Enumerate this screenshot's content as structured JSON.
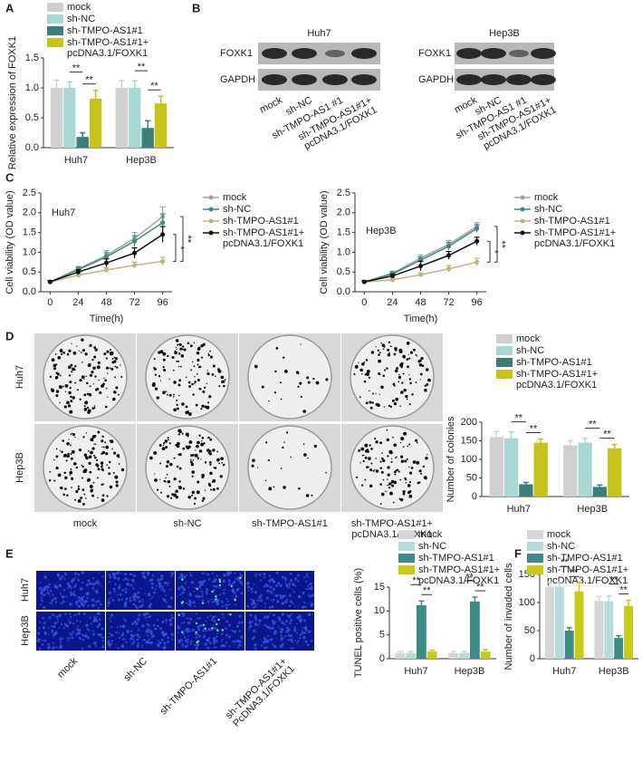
{
  "panel_labels": [
    "A",
    "B",
    "C",
    "D",
    "E",
    "F"
  ],
  "blots": [
    {
      "title": "Huh7",
      "rows": [
        "FOXK1",
        "GAPDH"
      ]
    },
    {
      "title": "Hep3B",
      "rows": [
        "FOXK1",
        "GAPDH"
      ]
    }
  ],
  "blot_lanes": [
    "mock",
    "sh-NC",
    "sh-TMPO-AS1 #1",
    "sh-TMPO-AS1#1+ pcDNA3.1/FOXK1"
  ],
  "colony_assay": {
    "rows": [
      "Huh7",
      "Hep3B"
    ],
    "columns": [
      "mock",
      "sh-NC",
      "sh-TMPO-AS1#1",
      "sh-TMPO-AS1#1+ pcDNA3.1/FOXK1"
    ]
  },
  "tunel_assay": {
    "rows": [
      "Huh7",
      "Hep3B"
    ],
    "columns": [
      "mock",
      "sh-NC",
      "sh-TMPO-AS1#1",
      "sh-TMPO-AS1#1+ PcDNA3.1/FOXK1"
    ]
  },
  "chart_data": [
    {
      "type": "bar",
      "ylabel": "Relative expression of FOXK1",
      "categories": [
        "Huh7",
        "Hep3B"
      ],
      "ylim": [
        0,
        1.5
      ],
      "yticks": [
        {
          "value": 0,
          "label": "0.0"
        },
        0.5,
        {
          "value": 1,
          "label": "1.0"
        },
        1.5
      ],
      "series": [
        {
          "name": "mock",
          "color": "#d0d0d0",
          "values": [
            1.0,
            1.0
          ],
          "errors": [
            0.13,
            0.12
          ]
        },
        {
          "name": "sh-NC",
          "color": "#a9d7d3",
          "values": [
            1.0,
            1.0
          ],
          "errors": [
            0.1,
            0.12
          ]
        },
        {
          "name": "sh-TMPO-AS1#1",
          "color": "#3d7d7a",
          "values": [
            0.18,
            0.33
          ],
          "errors": [
            0.07,
            0.12
          ]
        },
        {
          "name": "sh-TMPO-AS1#1+ pcDNA3.1/FOXK1",
          "color": "#c6c41a",
          "values": [
            0.82,
            0.74
          ],
          "errors": [
            0.14,
            0.12
          ]
        }
      ],
      "significance": [
        "**",
        "**",
        "**",
        "**"
      ]
    },
    {
      "type": "line",
      "title": "Huh7",
      "xlabel": "Time(h)",
      "ylabel": "Cell viability (OD value)",
      "x": [
        0,
        24,
        48,
        72,
        96
      ],
      "xlim": [
        -8,
        104
      ],
      "xticks": [
        0,
        24,
        48,
        72,
        96
      ],
      "ylim": [
        0,
        2.5
      ],
      "yticks": [
        {
          "value": 0,
          "label": "0.0"
        },
        0.5,
        {
          "value": 1,
          "label": "1.0"
        },
        1.5,
        {
          "value": 2,
          "label": "2.0"
        },
        2.5
      ],
      "series": [
        {
          "name": "mock",
          "color": "#a0a0a0",
          "values": [
            0.25,
            0.58,
            0.92,
            1.35,
            1.9
          ],
          "errors": [
            0.03,
            0.06,
            0.12,
            0.15,
            0.25
          ]
        },
        {
          "name": "sh-NC",
          "color": "#3a8a86",
          "values": [
            0.25,
            0.56,
            0.88,
            1.28,
            1.75
          ],
          "errors": [
            0.03,
            0.06,
            0.11,
            0.14,
            0.22
          ]
        },
        {
          "name": "sh-TMPO-AS1#1",
          "color": "#c2b282",
          "values": [
            0.25,
            0.42,
            0.55,
            0.67,
            0.77
          ],
          "errors": [
            0.03,
            0.05,
            0.06,
            0.08,
            0.1
          ]
        },
        {
          "name": "sh-TMPO-AS1#1+ pcDNA3.1/FOXK1",
          "color": "#111111",
          "values": [
            0.25,
            0.5,
            0.73,
            0.98,
            1.45
          ],
          "errors": [
            0.03,
            0.06,
            0.1,
            0.13,
            0.2
          ]
        }
      ],
      "significance": [
        "**",
        "*"
      ]
    },
    {
      "type": "line",
      "title": "Hep3B",
      "xlabel": "Time(h)",
      "ylabel": "Cell viability (OD value)",
      "x": [
        0,
        24,
        48,
        72,
        96
      ],
      "xlim": [
        -8,
        104
      ],
      "xticks": [
        0,
        24,
        48,
        72,
        96
      ],
      "ylim": [
        0,
        2.5
      ],
      "yticks": [
        {
          "value": 0,
          "label": "0.0"
        },
        0.5,
        {
          "value": 1,
          "label": "1.0"
        },
        1.5,
        {
          "value": 2,
          "label": "2.0"
        },
        2.5
      ],
      "series": [
        {
          "name": "mock",
          "color": "#a0a0a0",
          "values": [
            0.25,
            0.47,
            0.85,
            1.2,
            1.65
          ],
          "errors": [
            0.03,
            0.05,
            0.08,
            0.1,
            0.1
          ]
        },
        {
          "name": "sh-NC",
          "color": "#3a8a86",
          "values": [
            0.25,
            0.45,
            0.8,
            1.15,
            1.6
          ],
          "errors": [
            0.03,
            0.05,
            0.08,
            0.1,
            0.1
          ]
        },
        {
          "name": "sh-TMPO-AS1#1",
          "color": "#c2b282",
          "values": [
            0.25,
            0.3,
            0.43,
            0.58,
            0.75
          ],
          "errors": [
            0.03,
            0.04,
            0.05,
            0.08,
            0.1
          ]
        },
        {
          "name": "sh-TMPO-AS1#1+ pcDNA3.1/FOXK1",
          "color": "#111111",
          "values": [
            0.25,
            0.4,
            0.65,
            0.92,
            1.28
          ],
          "errors": [
            0.03,
            0.05,
            0.12,
            0.1,
            0.1
          ]
        }
      ],
      "significance": [
        "**",
        "*"
      ]
    },
    {
      "type": "bar",
      "ylabel": "Number of colonies",
      "categories": [
        "Huh7",
        "Hep3B"
      ],
      "ylim": [
        0,
        200
      ],
      "yticks": [
        0,
        50,
        100,
        150,
        200
      ],
      "series": [
        {
          "name": "mock",
          "color": "#d0d0d0",
          "values": [
            160,
            138
          ],
          "errors": [
            15,
            12
          ]
        },
        {
          "name": "sh-NC",
          "color": "#a9d7d3",
          "values": [
            157,
            145
          ],
          "errors": [
            17,
            12
          ]
        },
        {
          "name": "sh-TMPO-AS1#1",
          "color": "#3d7d7a",
          "values": [
            33,
            26
          ],
          "errors": [
            5,
            5
          ]
        },
        {
          "name": "sh-TMPO-AS1#1+ pcDNA3.1/FOXK1",
          "color": "#c6c41a",
          "values": [
            145,
            130
          ],
          "errors": [
            10,
            10
          ]
        }
      ],
      "significance": [
        "**",
        "**",
        "**",
        "**"
      ]
    },
    {
      "type": "bar",
      "ylabel": "TUNEL positive cells (%)",
      "categories": [
        "Huh7",
        "Hep3B"
      ],
      "ylim": [
        0,
        15
      ],
      "yticks": [
        0,
        5,
        10,
        15
      ],
      "series": [
        {
          "name": "mock",
          "color": "#d6d6d6",
          "values": [
            1.2,
            1.2
          ],
          "errors": [
            0.3,
            0.3
          ]
        },
        {
          "name": "sh-NC",
          "color": "#b5dcd8",
          "values": [
            1.2,
            1.2
          ],
          "errors": [
            0.3,
            0.3
          ]
        },
        {
          "name": "sh-TMPO-AS1#1",
          "color": "#3e8a86",
          "values": [
            11.2,
            12.0
          ],
          "errors": [
            0.9,
            0.9
          ]
        },
        {
          "name": "sh-TMPO-AS1#1+ pcDNA3.1/FOXK1",
          "color": "#c9c918",
          "values": [
            1.5,
            1.5
          ],
          "errors": [
            0.3,
            0.4
          ]
        }
      ],
      "significance": [
        "**",
        "**",
        "**",
        "**"
      ]
    },
    {
      "type": "bar",
      "ylabel": "Number of invaded cells",
      "categories": [
        "Huh7",
        "Hep3B"
      ],
      "ylim": [
        0,
        150
      ],
      "yticks": [
        0,
        50,
        100,
        150
      ],
      "series": [
        {
          "name": "mock",
          "color": "#d6d6d6",
          "values": [
            128,
            103
          ],
          "errors": [
            8,
            8
          ]
        },
        {
          "name": "sh-NC",
          "color": "#b5dcd8",
          "values": [
            128,
            102
          ],
          "errors": [
            8,
            10
          ]
        },
        {
          "name": "sh-TMPO-AS1#1",
          "color": "#3e8a86",
          "values": [
            50,
            37
          ],
          "errors": [
            5,
            4
          ]
        },
        {
          "name": "sh-TMPO-AS1#1+ pcDNA3.1/FOXK1",
          "color": "#c9c918",
          "values": [
            120,
            94
          ],
          "errors": [
            15,
            10
          ]
        }
      ],
      "significance": [
        "**",
        "**",
        "**",
        "**"
      ]
    }
  ]
}
